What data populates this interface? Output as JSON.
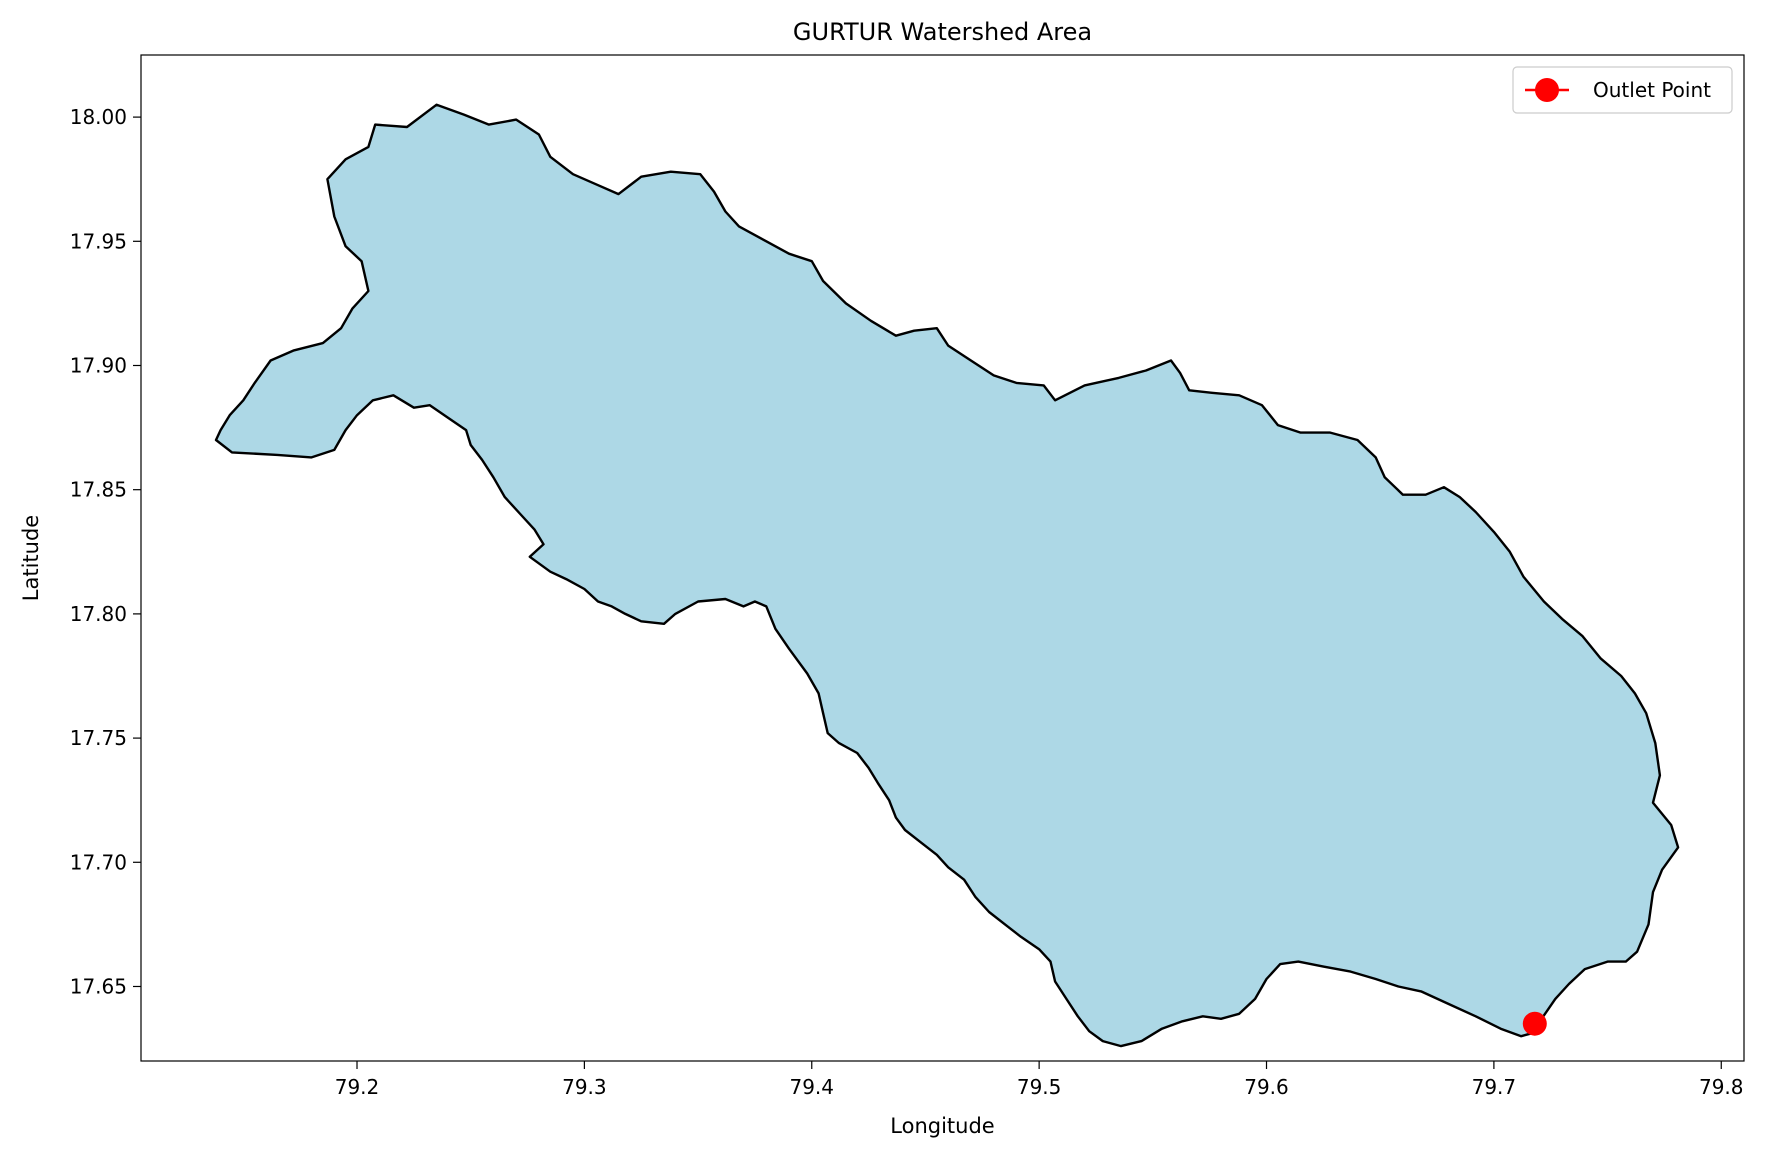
{
  "chart_data": {
    "type": "map",
    "title": "GURTUR Watershed Area",
    "xlabel": "Longitude",
    "ylabel": "Latitude",
    "xlim": [
      79.105,
      79.81
    ],
    "ylim": [
      17.62,
      18.025
    ],
    "xticks": [
      79.2,
      79.3,
      79.4,
      79.5,
      79.6,
      79.7,
      79.8
    ],
    "xtick_labels": [
      "79.2",
      "79.3",
      "79.4",
      "79.5",
      "79.6",
      "79.7",
      "79.8"
    ],
    "yticks": [
      17.65,
      17.7,
      17.75,
      17.8,
      17.85,
      17.9,
      17.95,
      18.0
    ],
    "ytick_labels": [
      "17.65",
      "17.70",
      "17.75",
      "17.80",
      "17.85",
      "17.90",
      "17.95",
      "18.00"
    ],
    "grid": false,
    "legend": {
      "placement": "top-right",
      "entries": [
        "Outlet Point"
      ]
    },
    "watershed": {
      "fill": "#add8e6",
      "edge": "#000000",
      "boundary": [
        [
          79.138,
          17.87
        ],
        [
          79.145,
          17.865
        ],
        [
          79.165,
          17.864
        ],
        [
          79.18,
          17.863
        ],
        [
          79.19,
          17.866
        ],
        [
          79.195,
          17.874
        ],
        [
          79.2,
          17.88
        ],
        [
          79.207,
          17.886
        ],
        [
          79.216,
          17.888
        ],
        [
          79.225,
          17.883
        ],
        [
          79.232,
          17.884
        ],
        [
          79.24,
          17.879
        ],
        [
          79.248,
          17.874
        ],
        [
          79.25,
          17.868
        ],
        [
          79.255,
          17.862
        ],
        [
          79.26,
          17.855
        ],
        [
          79.265,
          17.847
        ],
        [
          79.272,
          17.84
        ],
        [
          79.278,
          17.834
        ],
        [
          79.282,
          17.828
        ],
        [
          79.276,
          17.823
        ],
        [
          79.285,
          17.817
        ],
        [
          79.292,
          17.814
        ],
        [
          79.3,
          17.81
        ],
        [
          79.306,
          17.805
        ],
        [
          79.312,
          17.803
        ],
        [
          79.318,
          17.8
        ],
        [
          79.325,
          17.797
        ],
        [
          79.335,
          17.796
        ],
        [
          79.34,
          17.8
        ],
        [
          79.35,
          17.805
        ],
        [
          79.362,
          17.806
        ],
        [
          79.37,
          17.803
        ],
        [
          79.375,
          17.805
        ],
        [
          79.38,
          17.803
        ],
        [
          79.384,
          17.794
        ],
        [
          79.39,
          17.786
        ],
        [
          79.398,
          17.776
        ],
        [
          79.403,
          17.768
        ],
        [
          79.405,
          17.76
        ],
        [
          79.407,
          17.752
        ],
        [
          79.412,
          17.748
        ],
        [
          79.42,
          17.744
        ],
        [
          79.425,
          17.738
        ],
        [
          79.429,
          17.732
        ],
        [
          79.434,
          17.725
        ],
        [
          79.437,
          17.718
        ],
        [
          79.441,
          17.713
        ],
        [
          79.448,
          17.708
        ],
        [
          79.455,
          17.703
        ],
        [
          79.46,
          17.698
        ],
        [
          79.467,
          17.693
        ],
        [
          79.472,
          17.686
        ],
        [
          79.478,
          17.68
        ],
        [
          79.485,
          17.675
        ],
        [
          79.492,
          17.67
        ],
        [
          79.5,
          17.665
        ],
        [
          79.505,
          17.66
        ],
        [
          79.507,
          17.652
        ],
        [
          79.512,
          17.645
        ],
        [
          79.517,
          17.638
        ],
        [
          79.522,
          17.632
        ],
        [
          79.528,
          17.628
        ],
        [
          79.536,
          17.626
        ],
        [
          79.545,
          17.628
        ],
        [
          79.554,
          17.633
        ],
        [
          79.563,
          17.636
        ],
        [
          79.572,
          17.638
        ],
        [
          79.58,
          17.637
        ],
        [
          79.588,
          17.639
        ],
        [
          79.595,
          17.645
        ],
        [
          79.6,
          17.653
        ],
        [
          79.606,
          17.659
        ],
        [
          79.614,
          17.66
        ],
        [
          79.625,
          17.658
        ],
        [
          79.637,
          17.656
        ],
        [
          79.648,
          17.653
        ],
        [
          79.658,
          17.65
        ],
        [
          79.668,
          17.648
        ],
        [
          79.68,
          17.643
        ],
        [
          79.692,
          17.638
        ],
        [
          79.703,
          17.633
        ],
        [
          79.712,
          17.63
        ],
        [
          79.716,
          17.631
        ],
        [
          79.721,
          17.637
        ],
        [
          79.727,
          17.645
        ],
        [
          79.733,
          17.651
        ],
        [
          79.74,
          17.657
        ],
        [
          79.75,
          17.66
        ],
        [
          79.758,
          17.66
        ],
        [
          79.763,
          17.664
        ],
        [
          79.768,
          17.675
        ],
        [
          79.77,
          17.688
        ],
        [
          79.774,
          17.697
        ],
        [
          79.781,
          17.706
        ],
        [
          79.778,
          17.715
        ],
        [
          79.77,
          17.724
        ],
        [
          79.773,
          17.735
        ],
        [
          79.771,
          17.748
        ],
        [
          79.767,
          17.76
        ],
        [
          79.762,
          17.768
        ],
        [
          79.756,
          17.775
        ],
        [
          79.747,
          17.782
        ],
        [
          79.739,
          17.791
        ],
        [
          79.73,
          17.798
        ],
        [
          79.722,
          17.805
        ],
        [
          79.713,
          17.815
        ],
        [
          79.707,
          17.825
        ],
        [
          79.7,
          17.833
        ],
        [
          79.692,
          17.841
        ],
        [
          79.685,
          17.847
        ],
        [
          79.678,
          17.851
        ],
        [
          79.67,
          17.848
        ],
        [
          79.66,
          17.848
        ],
        [
          79.652,
          17.855
        ],
        [
          79.648,
          17.863
        ],
        [
          79.64,
          17.87
        ],
        [
          79.628,
          17.873
        ],
        [
          79.615,
          17.873
        ],
        [
          79.605,
          17.876
        ],
        [
          79.598,
          17.884
        ],
        [
          79.588,
          17.888
        ],
        [
          79.576,
          17.889
        ],
        [
          79.566,
          17.89
        ],
        [
          79.562,
          17.897
        ],
        [
          79.558,
          17.902
        ],
        [
          79.547,
          17.898
        ],
        [
          79.535,
          17.895
        ],
        [
          79.52,
          17.892
        ],
        [
          79.507,
          17.886
        ],
        [
          79.502,
          17.892
        ],
        [
          79.49,
          17.893
        ],
        [
          79.48,
          17.896
        ],
        [
          79.47,
          17.902
        ],
        [
          79.46,
          17.908
        ],
        [
          79.455,
          17.915
        ],
        [
          79.445,
          17.914
        ],
        [
          79.437,
          17.912
        ],
        [
          79.426,
          17.918
        ],
        [
          79.415,
          17.925
        ],
        [
          79.405,
          17.934
        ],
        [
          79.4,
          17.942
        ],
        [
          79.39,
          17.945
        ],
        [
          79.38,
          17.95
        ],
        [
          79.368,
          17.956
        ],
        [
          79.362,
          17.962
        ],
        [
          79.357,
          17.97
        ],
        [
          79.351,
          17.977
        ],
        [
          79.338,
          17.978
        ],
        [
          79.325,
          17.976
        ],
        [
          79.315,
          17.969
        ],
        [
          79.305,
          17.973
        ],
        [
          79.295,
          17.977
        ],
        [
          79.285,
          17.984
        ],
        [
          79.28,
          17.993
        ],
        [
          79.27,
          17.999
        ],
        [
          79.258,
          17.997
        ],
        [
          79.247,
          18.001
        ],
        [
          79.235,
          18.005
        ],
        [
          79.222,
          17.996
        ],
        [
          79.208,
          17.997
        ],
        [
          79.205,
          17.988
        ],
        [
          79.195,
          17.983
        ],
        [
          79.187,
          17.975
        ],
        [
          79.19,
          17.96
        ],
        [
          79.195,
          17.948
        ],
        [
          79.202,
          17.942
        ],
        [
          79.205,
          17.93
        ],
        [
          79.198,
          17.923
        ],
        [
          79.193,
          17.915
        ],
        [
          79.185,
          17.909
        ],
        [
          79.172,
          17.906
        ],
        [
          79.162,
          17.902
        ],
        [
          79.155,
          17.893
        ],
        [
          79.15,
          17.886
        ],
        [
          79.144,
          17.88
        ],
        [
          79.14,
          17.874
        ]
      ]
    },
    "outlet_point": {
      "name": "Outlet Point",
      "lon": 79.718,
      "lat": 17.635,
      "color": "#ff0000"
    }
  }
}
